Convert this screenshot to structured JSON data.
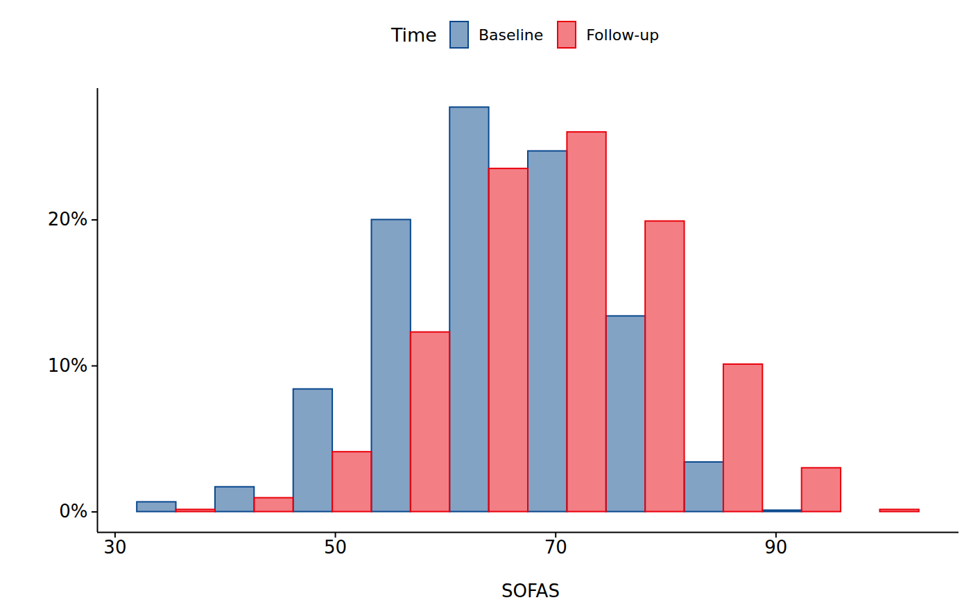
{
  "chart_data": {
    "type": "histogram",
    "legend_title": "Time",
    "legend": "top",
    "x_label": "SOFAS",
    "bins": [
      32,
      39.1,
      46.2,
      53.3,
      60.4,
      67.5,
      74.6,
      81.7,
      88.8,
      95.9,
      103
    ],
    "series": [
      {
        "name": "Baseline",
        "color": "#08478c",
        "values": [
          0.67,
          1.7,
          8.4,
          20.0,
          27.7,
          24.7,
          13.4,
          3.4,
          0.1,
          0
        ]
      },
      {
        "name": "Follow-up",
        "color": "#e8000b",
        "values": [
          0.15,
          0.95,
          4.1,
          12.3,
          23.5,
          26.0,
          19.9,
          10.1,
          3.0,
          0.15
        ]
      }
    ],
    "xlim": [
      28.4,
      106.6
    ],
    "xticks": [
      30,
      50,
      70,
      90
    ],
    "ylim": [
      -1.4,
      29
    ],
    "yticks": [
      {
        "value": 0,
        "label": "0%"
      },
      {
        "value": 10,
        "label": "10%"
      },
      {
        "value": 20,
        "label": "20%"
      }
    ],
    "grid": false
  }
}
